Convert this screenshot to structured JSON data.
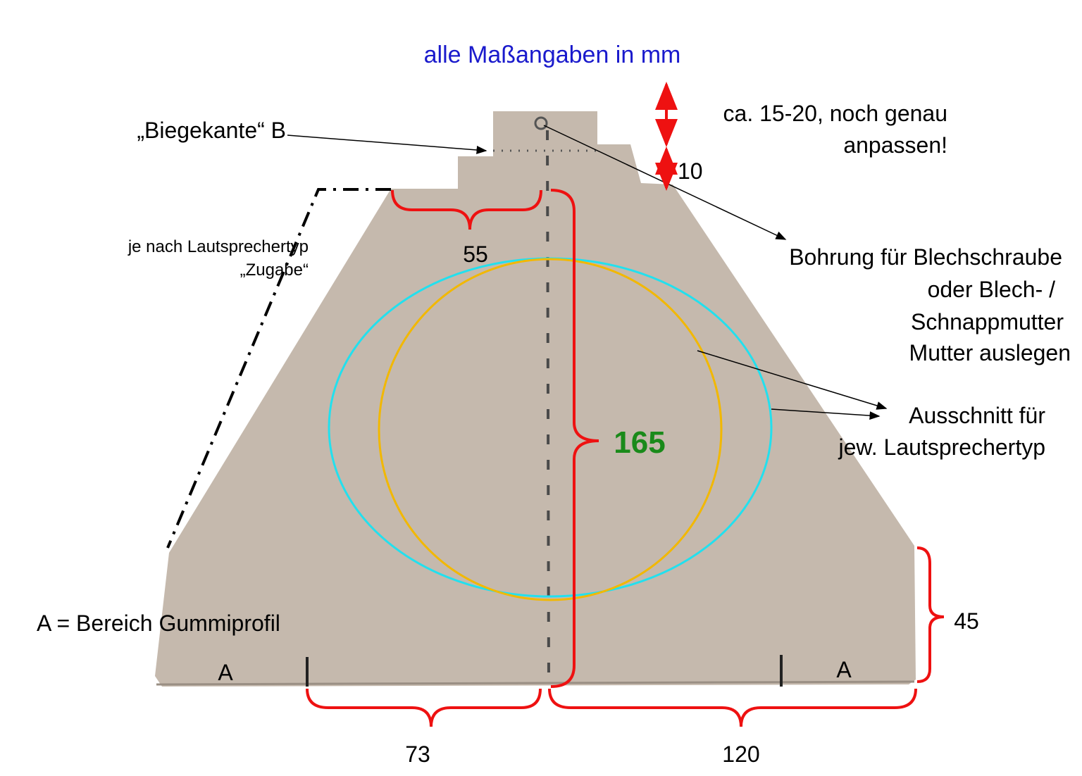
{
  "title": "alle Maßangaben in mm",
  "labels": {
    "bend_edge": "„Biegekante“ B",
    "allowance_line1": "je nach Lautsprechertyp",
    "allowance_line2": "„Zugabe“",
    "tab_height_line1": "ca. 15-20, noch genau",
    "tab_height_line2": "anpassen!",
    "tab_step": "10",
    "hole_line1": "Bohrung für Blechschraube",
    "hole_line2": "oder Blech- /",
    "hole_line3": "Schnappmutter",
    "hole_line4": "Mutter auslegen",
    "cutout_line1": "Ausschnitt für",
    "cutout_line2": "jew. Lautsprechertyp",
    "rubber_area": "A = Bereich Gummiprofil",
    "area_left": "A",
    "area_right": "A"
  },
  "dimensions": {
    "top_half_width": "55",
    "height": "165",
    "side_height": "45",
    "bottom_left": "73",
    "bottom_right": "120"
  },
  "colors": {
    "title": "#1a1acc",
    "dimension_brace": "#ee1111",
    "height_value": "#1a8a1a",
    "cutout_large": "#22e0ee",
    "cutout_small": "#f2b800",
    "cardboard": "#c5b9ad"
  }
}
